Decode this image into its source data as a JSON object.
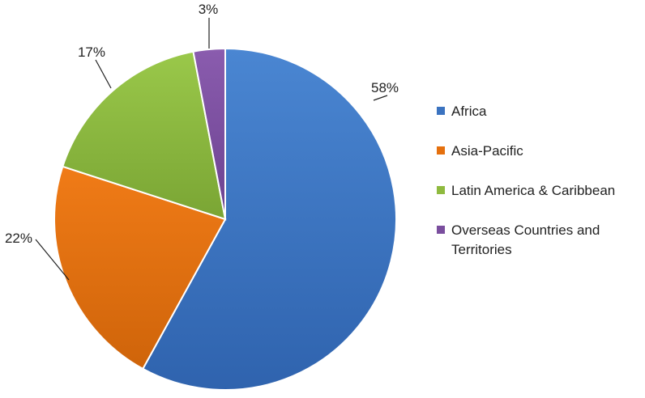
{
  "chart_data": {
    "type": "pie",
    "categories": [
      "Africa",
      "Asia-Pacific",
      "Latin America & Caribbean",
      "Overseas Countries and Territories"
    ],
    "values": [
      58,
      22,
      17,
      3
    ],
    "labels": [
      "58%",
      "22%",
      "17%",
      "3%"
    ],
    "colors": [
      "#3b73c0",
      "#e5700e",
      "#8fba3f",
      "#7a4e9e"
    ],
    "legend_position": "right",
    "start_angle_deg": 0,
    "direction": "clockwise"
  }
}
